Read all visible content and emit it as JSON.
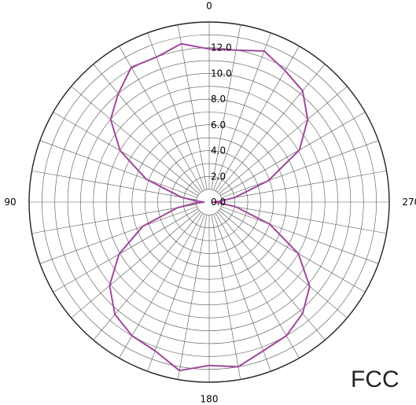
{
  "chart_data": {
    "type": "polar-line",
    "title": "",
    "angle_direction": "counterclockwise",
    "angle_zero": "top",
    "r_range": [
      0,
      14
    ],
    "r_ticks": [
      0,
      2,
      4,
      6,
      8,
      10,
      12
    ],
    "r_tick_labels": [
      "0.0",
      "2.0",
      "4.0",
      "6.0",
      "8.0",
      "10.0",
      "12.0"
    ],
    "angle_labels": [
      {
        "deg": 0,
        "text": "0"
      },
      {
        "deg": 90,
        "text": "90"
      },
      {
        "deg": 180,
        "text": "180"
      },
      {
        "deg": 270,
        "text": "270"
      }
    ],
    "grid": true,
    "series": [
      {
        "color": "#a0489c",
        "theta": [
          0,
          10,
          20,
          30,
          40,
          50,
          60,
          70,
          80,
          85,
          90,
          95,
          100,
          110,
          120,
          130,
          140,
          150,
          160,
          170,
          180,
          190,
          200,
          210,
          220,
          230,
          240,
          250,
          260,
          265,
          270,
          275,
          280,
          290,
          300,
          310,
          320,
          330,
          340,
          350,
          360
        ],
        "r": [
          11.9,
          12.5,
          12.0,
          12.1,
          11.0,
          10.0,
          8.0,
          5.2,
          2.2,
          1.0,
          0.4,
          1.2,
          2.5,
          5.5,
          8.1,
          10.1,
          11.4,
          12.0,
          12.3,
          13.3,
          12.7,
          13.0,
          12.3,
          12.0,
          11.3,
          10.2,
          8.0,
          5.0,
          2.1,
          0.9,
          0.3,
          0.9,
          2.0,
          4.9,
          8.1,
          10.0,
          11.3,
          11.8,
          12.5,
          12.0,
          11.9
        ]
      }
    ]
  },
  "corner_label": "FCC"
}
